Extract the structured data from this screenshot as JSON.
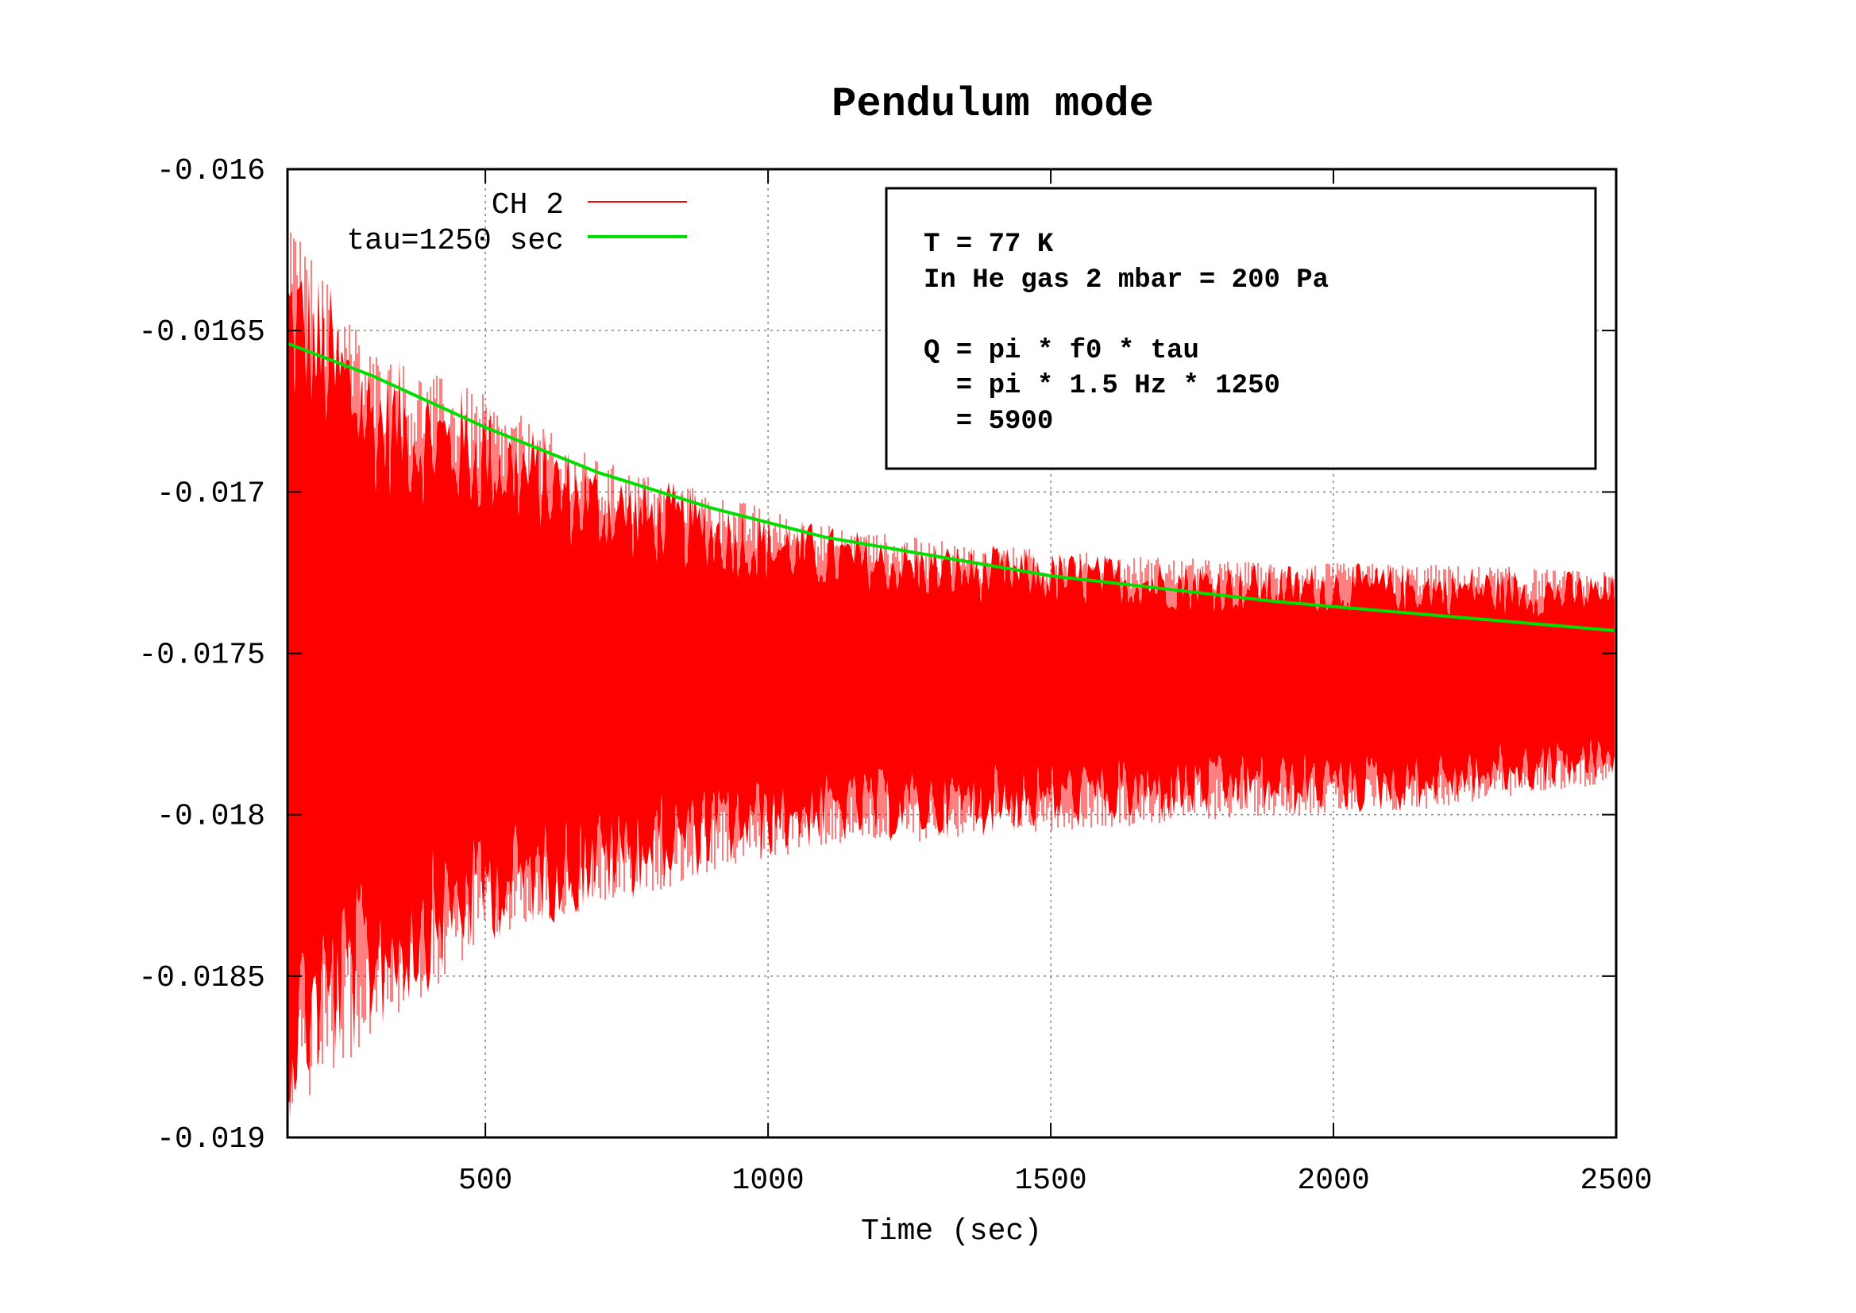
{
  "chart_data": {
    "type": "line",
    "title": "Pendulum mode",
    "xlabel": "Time (sec)",
    "ylabel": "",
    "xlim": [
      150,
      2500
    ],
    "ylim": [
      -0.019,
      -0.016
    ],
    "grid": true,
    "legend_position": "top-left",
    "x_ticks": [
      {
        "value": 500,
        "label": "500"
      },
      {
        "value": 1000,
        "label": "1000"
      },
      {
        "value": 1500,
        "label": "1500"
      },
      {
        "value": 2000,
        "label": "2000"
      },
      {
        "value": 2500,
        "label": "2500"
      }
    ],
    "y_ticks": [
      {
        "value": -0.016,
        "label": "-0.016"
      },
      {
        "value": -0.0165,
        "label": "-0.0165"
      },
      {
        "value": -0.017,
        "label": "-0.017"
      },
      {
        "value": -0.0175,
        "label": "-0.0175"
      },
      {
        "value": -0.018,
        "label": "-0.018"
      },
      {
        "value": -0.0185,
        "label": "-0.0185"
      },
      {
        "value": -0.019,
        "label": "-0.019"
      }
    ],
    "series": [
      {
        "name": "CH 2",
        "color": "#ff0000",
        "style": "oscillating-signal",
        "center": -0.01757,
        "envelope": {
          "x": [
            150,
            300,
            500,
            700,
            900,
            1100,
            1300,
            1500,
            1700,
            1900,
            2100,
            2300,
            2500
          ],
          "upper": [
            -0.01615,
            -0.01655,
            -0.0167,
            -0.0169,
            -0.017,
            -0.0171,
            -0.01715,
            -0.01718,
            -0.0172,
            -0.01722,
            -0.01722,
            -0.01723,
            -0.01725
          ],
          "lower": [
            -0.01895,
            -0.0187,
            -0.0184,
            -0.0183,
            -0.01818,
            -0.0181,
            -0.01808,
            -0.01805,
            -0.01803,
            -0.018,
            -0.018,
            -0.01795,
            -0.0179
          ]
        }
      },
      {
        "name": "tau=1250 sec",
        "color": "#00dd00",
        "style": "line",
        "x": [
          150,
          300,
          500,
          700,
          900,
          1100,
          1300,
          1500,
          1700,
          1900,
          2100,
          2300,
          2500
        ],
        "y": [
          -0.01654,
          -0.01664,
          -0.0168,
          -0.01694,
          -0.01705,
          -0.01714,
          -0.0172,
          -0.01726,
          -0.0173,
          -0.01734,
          -0.01737,
          -0.0174,
          -0.01743
        ]
      }
    ],
    "annotation": {
      "lines": [
        "T = 77 K",
        "In He gas 2 mbar = 200 Pa",
        "",
        "Q = pi * f0 * tau",
        "  = pi * 1.5 Hz * 1250",
        "  = 5900"
      ]
    }
  }
}
